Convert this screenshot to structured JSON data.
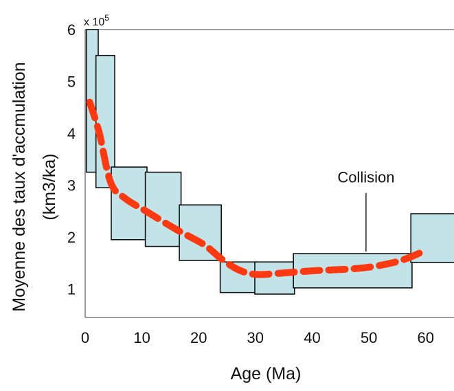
{
  "chart_data": {
    "type": "bar",
    "title": "",
    "xlabel": "Age (Ma)",
    "ylabel_line1": "Moyenne des taux d'accmulation",
    "ylabel_line2": "(km3/ka)",
    "y_multiplier_base": "x 10",
    "y_multiplier_exp": "5",
    "xlim": [
      0,
      65
    ],
    "ylim": [
      0.45,
      6
    ],
    "x_ticks": [
      0,
      10,
      20,
      30,
      40,
      50,
      60
    ],
    "x_tick_labels": [
      "0",
      "10",
      "20",
      "30",
      "40",
      "50",
      "60"
    ],
    "y_ticks": [
      1,
      2,
      3,
      4,
      5,
      6
    ],
    "y_tick_labels": [
      "1",
      "2",
      "3",
      "4",
      "5",
      "6"
    ],
    "box_fill": "#c2e3e8",
    "box_stroke": "#111111",
    "curve_color": "#ff3a12",
    "boxes": [
      {
        "x0": 0.2,
        "x1": 2.3,
        "y0": 3.25,
        "y1": 6.0
      },
      {
        "x0": 1.9,
        "x1": 5.2,
        "y0": 2.95,
        "y1": 5.5
      },
      {
        "x0": 4.6,
        "x1": 10.9,
        "y0": 1.95,
        "y1": 3.35
      },
      {
        "x0": 10.6,
        "x1": 16.9,
        "y0": 1.82,
        "y1": 3.25
      },
      {
        "x0": 16.6,
        "x1": 24.0,
        "y0": 1.55,
        "y1": 2.62
      },
      {
        "x0": 23.8,
        "x1": 30.2,
        "y0": 0.93,
        "y1": 1.52
      },
      {
        "x0": 29.9,
        "x1": 36.9,
        "y0": 0.9,
        "y1": 1.52
      },
      {
        "x0": 36.7,
        "x1": 57.6,
        "y0": 1.02,
        "y1": 1.68
      },
      {
        "x0": 57.4,
        "x1": 65.3,
        "y0": 1.51,
        "y1": 2.45
      }
    ],
    "trend_line": {
      "style": "dashed",
      "x": [
        0.8,
        2.5,
        4.5,
        7.0,
        11.0,
        16.0,
        21.0,
        24.0,
        27.0,
        30.0,
        34.0,
        40.0,
        46.0,
        50.0,
        54.0,
        57.0,
        59.5
      ],
      "y": [
        4.6,
        4.0,
        3.05,
        2.75,
        2.48,
        2.15,
        1.85,
        1.58,
        1.37,
        1.28,
        1.3,
        1.35,
        1.38,
        1.42,
        1.5,
        1.6,
        1.72
      ]
    },
    "annotations": [
      {
        "text": "Collision",
        "x": 49.5,
        "y": 3.05,
        "line_from_y": 2.85,
        "line_to_y": 1.72
      }
    ],
    "grid": false,
    "legend": "none"
  }
}
